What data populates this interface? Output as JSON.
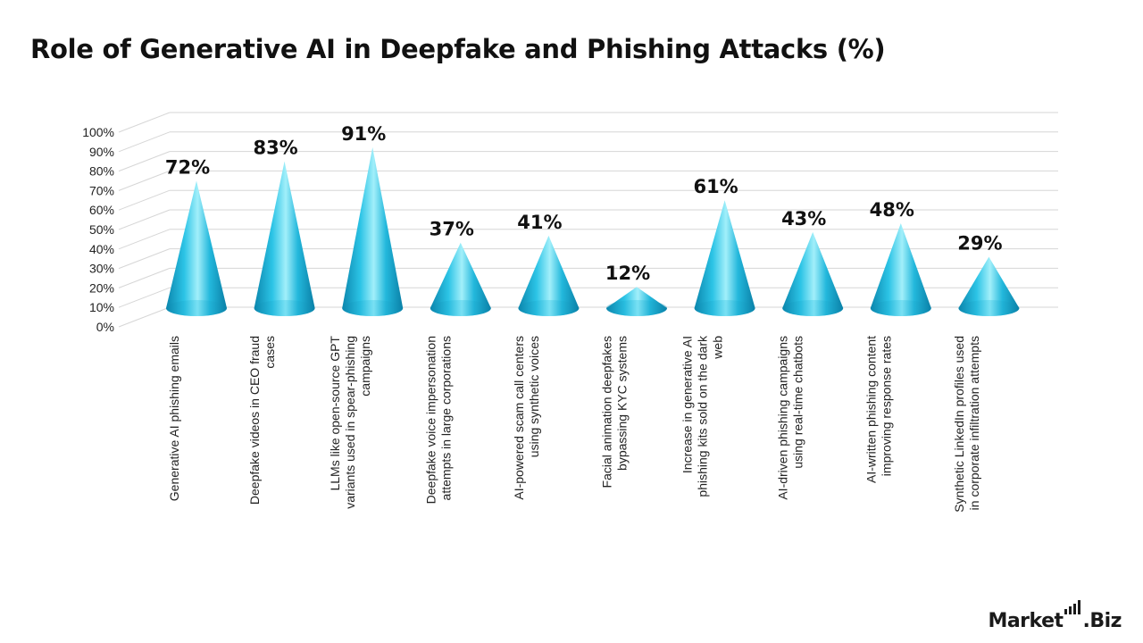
{
  "title": "Role of Generative AI in Deepfake and Phishing Attacks (%)",
  "logo": {
    "left": "Market",
    "dot": ".",
    "right": "Biz"
  },
  "colors": {
    "cone_light": "#8fe8f7",
    "cone_mid": "#1fb6da",
    "cone_dark": "#0a7fa6",
    "grid": "#d9d9d9",
    "text": "#111111"
  },
  "chart_data": {
    "type": "bar",
    "shape": "cone",
    "title": "Role of Generative AI in Deepfake and Phishing Attacks (%)",
    "xlabel": "",
    "ylabel": "",
    "ylim": [
      0,
      100
    ],
    "yticks": [
      "0%",
      "10%",
      "20%",
      "30%",
      "40%",
      "50%",
      "60%",
      "70%",
      "80%",
      "90%",
      "100%"
    ],
    "grid": true,
    "categories": [
      [
        "Generative AI phishing emails"
      ],
      [
        "Deepfake videos in CEO fraud",
        "cases"
      ],
      [
        "LLMs like open-source GPT",
        "variants used in spear-phishing",
        "campaigns"
      ],
      [
        "Deepfake voice impersonation",
        "attempts in large corporations"
      ],
      [
        "AI-powered scam call centers",
        "using synthetic voices"
      ],
      [
        "Facial animation deepfakes",
        "bypassing KYC systems"
      ],
      [
        "Increase in generative AI",
        "phishing kits sold on the dark",
        "web"
      ],
      [
        "AI-driven phishing campaigns",
        "using real-time chatbots"
      ],
      [
        "AI-written phishing content",
        "improving response rates"
      ],
      [
        "Synthetic LinkedIn profiles used",
        "in corporate infiltration attempts"
      ]
    ],
    "values": [
      72,
      83,
      91,
      37,
      41,
      12,
      61,
      43,
      48,
      29
    ],
    "data_labels": [
      "72%",
      "83%",
      "91%",
      "37%",
      "41%",
      "12%",
      "61%",
      "43%",
      "48%",
      "29%"
    ]
  }
}
